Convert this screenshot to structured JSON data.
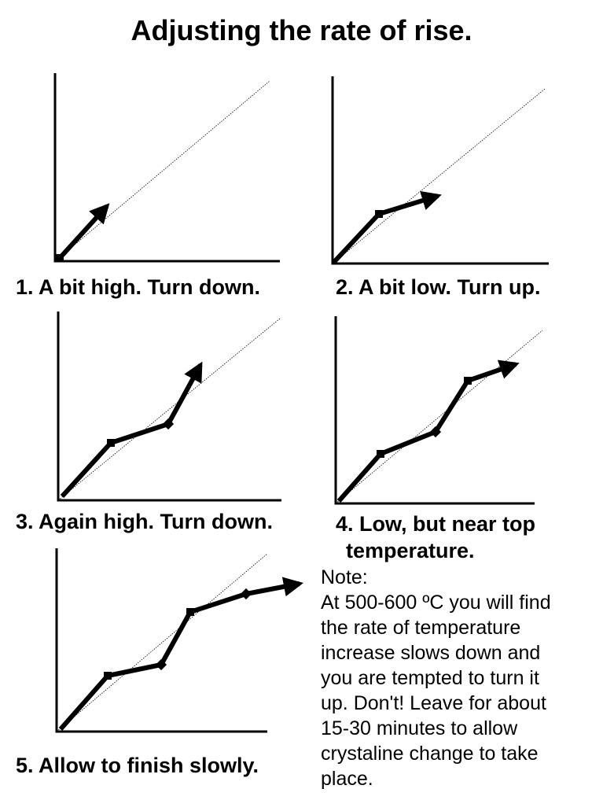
{
  "title": "Adjusting the rate of rise.",
  "panels": [
    {
      "caption": "1. A bit high. Turn down."
    },
    {
      "caption": "2. A bit low. Turn up."
    },
    {
      "caption": "3. Again high. Turn down."
    },
    {
      "caption_lines": [
        "4. Low, but near top",
        "temperature."
      ]
    },
    {
      "caption": "5. Allow to finish slowly."
    }
  ],
  "note": {
    "heading": "Note:",
    "lines": [
      "At 500-600 ºC you will find",
      "the rate of temperature",
      "increase slows down and",
      "you are tempted to turn it",
      "up. Don't! Leave for about",
      "15-30 minutes to allow",
      "crystaline change to take",
      "place."
    ]
  },
  "colors": {
    "ink": "#000000",
    "background": "#ffffff"
  }
}
